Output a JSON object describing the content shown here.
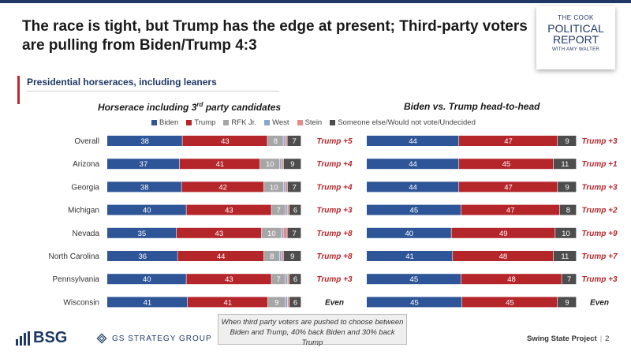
{
  "title_lines": [
    "The race is tight, but Trump has the edge at present; Third-party voters",
    "are pulling from Biden/Trump 4:3"
  ],
  "logo": {
    "line1": "THE COOK",
    "line2": "POLITICAL",
    "line3": "REPORT",
    "line4": "WITH AMY WALTER"
  },
  "subtitle": "Presidential horseraces, including leaners",
  "colors": {
    "biden": "#2e5597",
    "trump": "#b5262b",
    "rfk": "#a6a6a6",
    "west": "#8aa5d0",
    "stein": "#e48b8b",
    "other": "#4d4d4d",
    "margin_trump": "#b5262b",
    "margin_even": "#1a1a1a"
  },
  "legend": [
    {
      "key": "biden",
      "label": "Biden"
    },
    {
      "key": "trump",
      "label": "Trump"
    },
    {
      "key": "rfk",
      "label": "RFK Jr."
    },
    {
      "key": "west",
      "label": "West"
    },
    {
      "key": "stein",
      "label": "Stein"
    },
    {
      "key": "other",
      "label": "Someone else/Would not vote/Undecided"
    }
  ],
  "chart_data": [
    {
      "type": "bar",
      "stacked": true,
      "orientation": "horizontal",
      "title": "Horserace including 3rd party candidates",
      "categories": [
        "Overall",
        "Arizona",
        "Georgia",
        "Michigan",
        "Nevada",
        "North Carolina",
        "Pennsylvania",
        "Wisconsin"
      ],
      "series": [
        {
          "name": "Biden",
          "key": "biden",
          "values": [
            38,
            37,
            38,
            40,
            35,
            36,
            40,
            41
          ]
        },
        {
          "name": "Trump",
          "key": "trump",
          "values": [
            43,
            41,
            42,
            43,
            43,
            44,
            43,
            41
          ]
        },
        {
          "name": "RFK Jr.",
          "key": "rfk",
          "values": [
            8,
            10,
            10,
            7,
            10,
            8,
            7,
            9
          ]
        },
        {
          "name": "West",
          "key": "west",
          "values": [
            1,
            1,
            1,
            1,
            1,
            1,
            1,
            1
          ]
        },
        {
          "name": "Stein",
          "key": "stein",
          "values": [
            1,
            1,
            1,
            1,
            2,
            1,
            1,
            1
          ]
        },
        {
          "name": "Someone else/Would not vote/Undecided",
          "key": "other",
          "values": [
            7,
            9,
            7,
            6,
            7,
            9,
            6,
            6
          ]
        }
      ],
      "hidden_labels": [
        "west",
        "stein"
      ],
      "margins": [
        "Trump +5",
        "Trump +4",
        "Trump +4",
        "Trump +3",
        "Trump +8",
        "Trump +8",
        "Trump +3",
        "Even"
      ]
    },
    {
      "type": "bar",
      "stacked": true,
      "orientation": "horizontal",
      "title": "Biden vs. Trump head-to-head",
      "categories": [
        "Overall",
        "Arizona",
        "Georgia",
        "Michigan",
        "Nevada",
        "North Carolina",
        "Pennsylvania",
        "Wisconsin"
      ],
      "series": [
        {
          "name": "Biden",
          "key": "biden",
          "values": [
            44,
            44,
            44,
            45,
            40,
            41,
            45,
            45
          ]
        },
        {
          "name": "Trump",
          "key": "trump",
          "values": [
            47,
            45,
            47,
            47,
            49,
            48,
            48,
            45
          ]
        },
        {
          "name": "Someone else/Would not vote/Undecided",
          "key": "other",
          "values": [
            9,
            11,
            9,
            8,
            10,
            11,
            7,
            9
          ]
        }
      ],
      "hidden_labels": [],
      "margins": [
        "Trump +3",
        "Trump +1",
        "Trump +3",
        "Trump +2",
        "Trump +9",
        "Trump +7",
        "Trump +3",
        "Even"
      ]
    }
  ],
  "note": "When third party voters are pushed to choose between Biden and Trump, 40% back Biden and 30% back Trump",
  "footer": {
    "bsg": "BSG",
    "gs": "GS STRATEGY GROUP",
    "project": "Swing State Project",
    "page": "2"
  }
}
